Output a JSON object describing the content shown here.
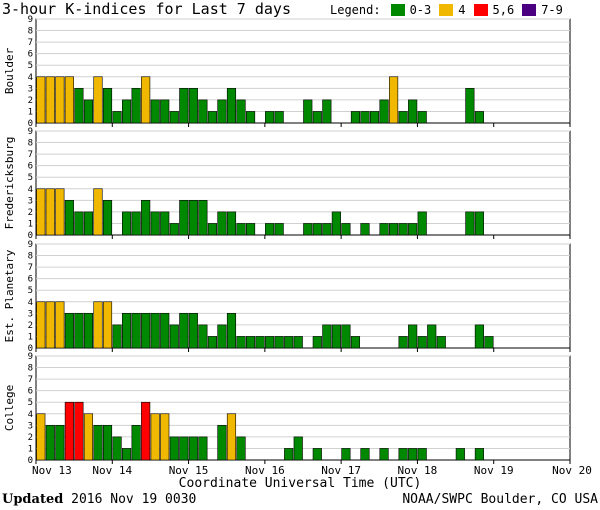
{
  "title": "3-hour K-indices for Last 7 days",
  "legend": {
    "label": "Legend:",
    "items": [
      {
        "label": "0-3",
        "color": "#008800"
      },
      {
        "label": "4",
        "color": "#f0b800"
      },
      {
        "label": "5,6",
        "color": "#ff0000"
      },
      {
        "label": "7-9",
        "color": "#4b0082"
      }
    ]
  },
  "footer": {
    "updated_label": "Updated",
    "updated_value": "2016 Nov 19 0030",
    "credit": "NOAA/SWPC Boulder, CO USA"
  },
  "chart_data": {
    "type": "bar",
    "xlabel": "Coordinate Universal Time (UTC)",
    "x_ticks": [
      "Nov 13",
      "Nov 14",
      "Nov 15",
      "Nov 16",
      "Nov 17",
      "Nov 18",
      "Nov 19",
      "Nov 20"
    ],
    "y_ticks": [
      0,
      1,
      2,
      3,
      4,
      5,
      6,
      7,
      8,
      9
    ],
    "ylim": [
      0,
      9
    ],
    "slots_per_day": 8,
    "color_scale": {
      "0-3": "#008800",
      "4": "#f0b800",
      "5,6": "#ff0000",
      "7-9": "#4b0082"
    },
    "series": [
      {
        "name": "Boulder",
        "values": [
          4,
          4,
          4,
          4,
          3,
          2,
          4,
          3,
          1,
          2,
          3,
          4,
          2,
          2,
          1,
          3,
          3,
          2,
          1,
          2,
          3,
          2,
          1,
          0,
          1,
          1,
          0,
          0,
          2,
          1,
          2,
          0,
          0,
          1,
          1,
          1,
          2,
          4,
          1,
          2,
          1,
          0,
          0,
          0,
          0,
          3,
          1,
          0,
          0,
          0,
          0,
          0,
          0,
          0,
          0,
          0
        ]
      },
      {
        "name": "Fredericksburg",
        "values": [
          4,
          4,
          4,
          3,
          2,
          2,
          4,
          3,
          0,
          2,
          2,
          3,
          2,
          2,
          1,
          3,
          3,
          3,
          1,
          2,
          2,
          1,
          1,
          0,
          1,
          1,
          0,
          0,
          1,
          1,
          1,
          2,
          1,
          0,
          1,
          0,
          1,
          1,
          1,
          1,
          2,
          0,
          0,
          0,
          0,
          2,
          2,
          0,
          0,
          0,
          0,
          0,
          0,
          0,
          0,
          0
        ]
      },
      {
        "name": "Est. Planetary",
        "values": [
          4,
          4,
          4,
          3,
          3,
          3,
          4,
          4,
          2,
          3,
          3,
          3,
          3,
          3,
          2,
          3,
          3,
          2,
          1,
          2,
          3,
          1,
          1,
          1,
          1,
          1,
          1,
          1,
          0,
          1,
          2,
          2,
          2,
          1,
          0,
          0,
          0,
          0,
          1,
          2,
          1,
          2,
          1,
          0,
          0,
          0,
          2,
          1,
          0,
          0,
          0,
          0,
          0,
          0,
          0,
          0
        ]
      },
      {
        "name": "College",
        "values": [
          4,
          3,
          3,
          5,
          5,
          4,
          3,
          3,
          2,
          1,
          3,
          5,
          4,
          4,
          2,
          2,
          2,
          2,
          0,
          3,
          4,
          2,
          0,
          0,
          0,
          0,
          1,
          2,
          0,
          1,
          0,
          0,
          1,
          0,
          1,
          0,
          1,
          0,
          1,
          1,
          1,
          0,
          0,
          0,
          1,
          0,
          1,
          0,
          0,
          0,
          0,
          0,
          0,
          0,
          0,
          0
        ]
      }
    ]
  }
}
